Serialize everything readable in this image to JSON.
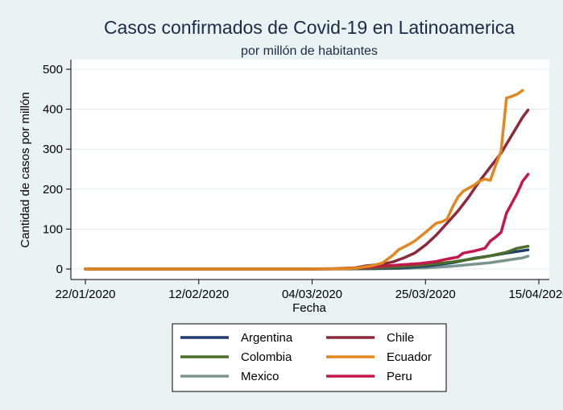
{
  "chart_data": {
    "type": "line",
    "title": "Casos confirmados de Covid-19 en Latinoamerica",
    "subtitle": "por millón de habitantes",
    "xlabel": "Fecha",
    "ylabel": "Cantidad de casos por millón",
    "x_ticks": [
      "22/01/2020",
      "12/02/2020",
      "04/03/2020",
      "25/03/2020",
      "15/04/2020"
    ],
    "y_ticks": [
      0,
      100,
      200,
      300,
      400,
      500
    ],
    "xlim": [
      "2020-01-22",
      "2020-04-15"
    ],
    "ylim": [
      0,
      520
    ],
    "grid": true,
    "legend_position": "bottom",
    "series": [
      {
        "name": "Argentina",
        "color": "#1f3c6e",
        "points": [
          [
            "2020-01-22",
            0
          ],
          [
            "2020-03-03",
            0
          ],
          [
            "2020-03-10",
            0.4
          ],
          [
            "2020-03-15",
            1
          ],
          [
            "2020-03-20",
            2.5
          ],
          [
            "2020-03-25",
            7
          ],
          [
            "2020-03-30",
            16
          ],
          [
            "2020-04-03",
            27
          ],
          [
            "2020-04-06",
            33
          ],
          [
            "2020-04-09",
            40
          ],
          [
            "2020-04-12",
            46
          ],
          [
            "2020-04-13",
            48
          ]
        ]
      },
      {
        "name": "Chile",
        "color": "#8c2a3c",
        "points": [
          [
            "2020-01-22",
            0
          ],
          [
            "2020-03-03",
            0
          ],
          [
            "2020-03-08",
            1
          ],
          [
            "2020-03-12",
            3
          ],
          [
            "2020-03-14",
            8
          ],
          [
            "2020-03-17",
            12
          ],
          [
            "2020-03-19",
            18
          ],
          [
            "2020-03-21",
            28
          ],
          [
            "2020-03-23",
            40
          ],
          [
            "2020-03-25",
            60
          ],
          [
            "2020-03-27",
            85
          ],
          [
            "2020-03-29",
            115
          ],
          [
            "2020-03-31",
            145
          ],
          [
            "2020-04-02",
            180
          ],
          [
            "2020-04-04",
            220
          ],
          [
            "2020-04-06",
            255
          ],
          [
            "2020-04-08",
            290
          ],
          [
            "2020-04-10",
            335
          ],
          [
            "2020-04-12",
            380
          ],
          [
            "2020-04-13",
            398
          ]
        ]
      },
      {
        "name": "Colombia",
        "color": "#4a6e2a",
        "points": [
          [
            "2020-01-22",
            0
          ],
          [
            "2020-03-03",
            0
          ],
          [
            "2020-03-10",
            0.5
          ],
          [
            "2020-03-15",
            2
          ],
          [
            "2020-03-20",
            5
          ],
          [
            "2020-03-25",
            10
          ],
          [
            "2020-03-30",
            18
          ],
          [
            "2020-04-03",
            26
          ],
          [
            "2020-04-06",
            33
          ],
          [
            "2020-04-09",
            42
          ],
          [
            "2020-04-11",
            52
          ],
          [
            "2020-04-13",
            57
          ]
        ]
      },
      {
        "name": "Ecuador",
        "color": "#e0871f",
        "points": [
          [
            "2020-01-22",
            0
          ],
          [
            "2020-03-03",
            0
          ],
          [
            "2020-03-08",
            0.5
          ],
          [
            "2020-03-12",
            2
          ],
          [
            "2020-03-15",
            8
          ],
          [
            "2020-03-17",
            15
          ],
          [
            "2020-03-18",
            25
          ],
          [
            "2020-03-19",
            35
          ],
          [
            "2020-03-20",
            48
          ],
          [
            "2020-03-21",
            55
          ],
          [
            "2020-03-22",
            62
          ],
          [
            "2020-03-23",
            70
          ],
          [
            "2020-03-25",
            92
          ],
          [
            "2020-03-27",
            115
          ],
          [
            "2020-03-28",
            118
          ],
          [
            "2020-03-29",
            125
          ],
          [
            "2020-03-30",
            155
          ],
          [
            "2020-03-31",
            180
          ],
          [
            "2020-04-01",
            195
          ],
          [
            "2020-04-03",
            210
          ],
          [
            "2020-04-04",
            220
          ],
          [
            "2020-04-05",
            225
          ],
          [
            "2020-04-06",
            222
          ],
          [
            "2020-04-07",
            260
          ],
          [
            "2020-04-08",
            295
          ],
          [
            "2020-04-09",
            428
          ],
          [
            "2020-04-10",
            432
          ],
          [
            "2020-04-11",
            438
          ],
          [
            "2020-04-12",
            447
          ]
        ]
      },
      {
        "name": "Mexico",
        "color": "#7a958e",
        "points": [
          [
            "2020-01-22",
            0
          ],
          [
            "2020-03-03",
            0
          ],
          [
            "2020-03-10",
            0.2
          ],
          [
            "2020-03-15",
            0.8
          ],
          [
            "2020-03-20",
            1.5
          ],
          [
            "2020-03-25",
            3
          ],
          [
            "2020-03-30",
            7
          ],
          [
            "2020-04-03",
            12
          ],
          [
            "2020-04-06",
            16
          ],
          [
            "2020-04-09",
            22
          ],
          [
            "2020-04-12",
            28
          ],
          [
            "2020-04-13",
            32
          ]
        ]
      },
      {
        "name": "Peru",
        "color": "#c4184a",
        "points": [
          [
            "2020-01-22",
            0
          ],
          [
            "2020-03-03",
            0
          ],
          [
            "2020-03-08",
            0.5
          ],
          [
            "2020-03-12",
            2
          ],
          [
            "2020-03-15",
            5
          ],
          [
            "2020-03-18",
            8
          ],
          [
            "2020-03-21",
            11
          ],
          [
            "2020-03-24",
            14
          ],
          [
            "2020-03-27",
            19
          ],
          [
            "2020-03-29",
            25
          ],
          [
            "2020-03-31",
            30
          ],
          [
            "2020-04-01",
            40
          ],
          [
            "2020-04-03",
            45
          ],
          [
            "2020-04-05",
            52
          ],
          [
            "2020-04-06",
            70
          ],
          [
            "2020-04-07",
            80
          ],
          [
            "2020-04-08",
            92
          ],
          [
            "2020-04-09",
            140
          ],
          [
            "2020-04-10",
            165
          ],
          [
            "2020-04-11",
            190
          ],
          [
            "2020-04-12",
            220
          ],
          [
            "2020-04-13",
            237
          ]
        ]
      }
    ]
  }
}
